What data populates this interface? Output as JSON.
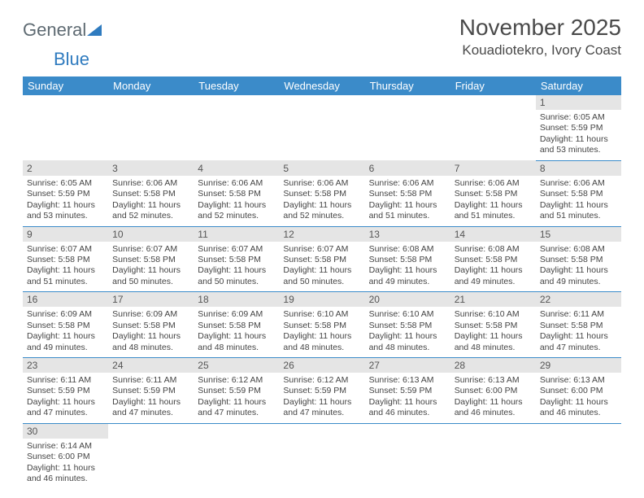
{
  "brand": {
    "part1": "General",
    "part2": "Blue"
  },
  "title": "November 2025",
  "location": "Kouadiotekro, Ivory Coast",
  "colors": {
    "header_bg": "#3b8bc9",
    "header_text": "#ffffff",
    "daynum_bg": "#e5e5e5",
    "row_border": "#3b8bc9",
    "logo_gray": "#5e6a72",
    "logo_blue": "#2f7bbf"
  },
  "day_headers": [
    "Sunday",
    "Monday",
    "Tuesday",
    "Wednesday",
    "Thursday",
    "Friday",
    "Saturday"
  ],
  "weeks": [
    [
      {
        "n": "",
        "blank": true
      },
      {
        "n": "",
        "blank": true
      },
      {
        "n": "",
        "blank": true
      },
      {
        "n": "",
        "blank": true
      },
      {
        "n": "",
        "blank": true
      },
      {
        "n": "",
        "blank": true
      },
      {
        "n": "1",
        "sr": "Sunrise: 6:05 AM",
        "ss": "Sunset: 5:59 PM",
        "dl": "Daylight: 11 hours and 53 minutes."
      }
    ],
    [
      {
        "n": "2",
        "sr": "Sunrise: 6:05 AM",
        "ss": "Sunset: 5:59 PM",
        "dl": "Daylight: 11 hours and 53 minutes."
      },
      {
        "n": "3",
        "sr": "Sunrise: 6:06 AM",
        "ss": "Sunset: 5:58 PM",
        "dl": "Daylight: 11 hours and 52 minutes."
      },
      {
        "n": "4",
        "sr": "Sunrise: 6:06 AM",
        "ss": "Sunset: 5:58 PM",
        "dl": "Daylight: 11 hours and 52 minutes."
      },
      {
        "n": "5",
        "sr": "Sunrise: 6:06 AM",
        "ss": "Sunset: 5:58 PM",
        "dl": "Daylight: 11 hours and 52 minutes."
      },
      {
        "n": "6",
        "sr": "Sunrise: 6:06 AM",
        "ss": "Sunset: 5:58 PM",
        "dl": "Daylight: 11 hours and 51 minutes."
      },
      {
        "n": "7",
        "sr": "Sunrise: 6:06 AM",
        "ss": "Sunset: 5:58 PM",
        "dl": "Daylight: 11 hours and 51 minutes."
      },
      {
        "n": "8",
        "sr": "Sunrise: 6:06 AM",
        "ss": "Sunset: 5:58 PM",
        "dl": "Daylight: 11 hours and 51 minutes."
      }
    ],
    [
      {
        "n": "9",
        "sr": "Sunrise: 6:07 AM",
        "ss": "Sunset: 5:58 PM",
        "dl": "Daylight: 11 hours and 51 minutes."
      },
      {
        "n": "10",
        "sr": "Sunrise: 6:07 AM",
        "ss": "Sunset: 5:58 PM",
        "dl": "Daylight: 11 hours and 50 minutes."
      },
      {
        "n": "11",
        "sr": "Sunrise: 6:07 AM",
        "ss": "Sunset: 5:58 PM",
        "dl": "Daylight: 11 hours and 50 minutes."
      },
      {
        "n": "12",
        "sr": "Sunrise: 6:07 AM",
        "ss": "Sunset: 5:58 PM",
        "dl": "Daylight: 11 hours and 50 minutes."
      },
      {
        "n": "13",
        "sr": "Sunrise: 6:08 AM",
        "ss": "Sunset: 5:58 PM",
        "dl": "Daylight: 11 hours and 49 minutes."
      },
      {
        "n": "14",
        "sr": "Sunrise: 6:08 AM",
        "ss": "Sunset: 5:58 PM",
        "dl": "Daylight: 11 hours and 49 minutes."
      },
      {
        "n": "15",
        "sr": "Sunrise: 6:08 AM",
        "ss": "Sunset: 5:58 PM",
        "dl": "Daylight: 11 hours and 49 minutes."
      }
    ],
    [
      {
        "n": "16",
        "sr": "Sunrise: 6:09 AM",
        "ss": "Sunset: 5:58 PM",
        "dl": "Daylight: 11 hours and 49 minutes."
      },
      {
        "n": "17",
        "sr": "Sunrise: 6:09 AM",
        "ss": "Sunset: 5:58 PM",
        "dl": "Daylight: 11 hours and 48 minutes."
      },
      {
        "n": "18",
        "sr": "Sunrise: 6:09 AM",
        "ss": "Sunset: 5:58 PM",
        "dl": "Daylight: 11 hours and 48 minutes."
      },
      {
        "n": "19",
        "sr": "Sunrise: 6:10 AM",
        "ss": "Sunset: 5:58 PM",
        "dl": "Daylight: 11 hours and 48 minutes."
      },
      {
        "n": "20",
        "sr": "Sunrise: 6:10 AM",
        "ss": "Sunset: 5:58 PM",
        "dl": "Daylight: 11 hours and 48 minutes."
      },
      {
        "n": "21",
        "sr": "Sunrise: 6:10 AM",
        "ss": "Sunset: 5:58 PM",
        "dl": "Daylight: 11 hours and 48 minutes."
      },
      {
        "n": "22",
        "sr": "Sunrise: 6:11 AM",
        "ss": "Sunset: 5:58 PM",
        "dl": "Daylight: 11 hours and 47 minutes."
      }
    ],
    [
      {
        "n": "23",
        "sr": "Sunrise: 6:11 AM",
        "ss": "Sunset: 5:59 PM",
        "dl": "Daylight: 11 hours and 47 minutes."
      },
      {
        "n": "24",
        "sr": "Sunrise: 6:11 AM",
        "ss": "Sunset: 5:59 PM",
        "dl": "Daylight: 11 hours and 47 minutes."
      },
      {
        "n": "25",
        "sr": "Sunrise: 6:12 AM",
        "ss": "Sunset: 5:59 PM",
        "dl": "Daylight: 11 hours and 47 minutes."
      },
      {
        "n": "26",
        "sr": "Sunrise: 6:12 AM",
        "ss": "Sunset: 5:59 PM",
        "dl": "Daylight: 11 hours and 47 minutes."
      },
      {
        "n": "27",
        "sr": "Sunrise: 6:13 AM",
        "ss": "Sunset: 5:59 PM",
        "dl": "Daylight: 11 hours and 46 minutes."
      },
      {
        "n": "28",
        "sr": "Sunrise: 6:13 AM",
        "ss": "Sunset: 6:00 PM",
        "dl": "Daylight: 11 hours and 46 minutes."
      },
      {
        "n": "29",
        "sr": "Sunrise: 6:13 AM",
        "ss": "Sunset: 6:00 PM",
        "dl": "Daylight: 11 hours and 46 minutes."
      }
    ],
    [
      {
        "n": "30",
        "sr": "Sunrise: 6:14 AM",
        "ss": "Sunset: 6:00 PM",
        "dl": "Daylight: 11 hours and 46 minutes."
      },
      {
        "n": "",
        "blank": true
      },
      {
        "n": "",
        "blank": true
      },
      {
        "n": "",
        "blank": true
      },
      {
        "n": "",
        "blank": true
      },
      {
        "n": "",
        "blank": true
      },
      {
        "n": "",
        "blank": true
      }
    ]
  ]
}
